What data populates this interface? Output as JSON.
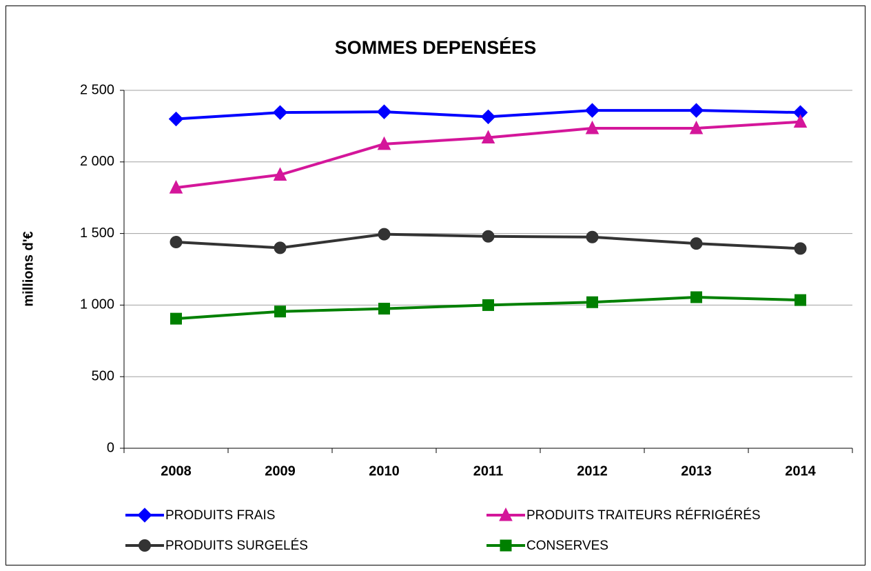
{
  "chart_data": {
    "type": "line",
    "title": "SOMMES DEPENSÉES",
    "y_label": "millions d'€",
    "categories": [
      "2008",
      "2009",
      "2010",
      "2011",
      "2012",
      "2013",
      "2014"
    ],
    "series": [
      {
        "name": "PRODUITS FRAIS",
        "color": "#0000ff",
        "marker": "diamond",
        "values": [
          2300,
          2345,
          2350,
          2315,
          2360,
          2360,
          2345
        ]
      },
      {
        "name": "PRODUITS TRAITEURS RÉFRIGÉRÉS",
        "color": "#d4169a",
        "marker": "triangle",
        "values": [
          1820,
          1910,
          2125,
          2170,
          2235,
          2235,
          2280
        ]
      },
      {
        "name": "PRODUITS SURGELÉS",
        "color": "#333333",
        "marker": "circle",
        "values": [
          1440,
          1400,
          1495,
          1480,
          1475,
          1430,
          1395
        ]
      },
      {
        "name": "CONSERVES",
        "color": "#008000",
        "marker": "square",
        "values": [
          905,
          955,
          975,
          1000,
          1020,
          1055,
          1035
        ]
      }
    ],
    "ylim": [
      0,
      2500
    ],
    "yticks": [
      0,
      500,
      {
        "value": 1000,
        "label": "1 000"
      },
      {
        "value": 1500,
        "label": "1 500"
      },
      {
        "value": 2000,
        "label": "2 000"
      },
      {
        "value": 2500,
        "label": "2 500"
      }
    ],
    "grid": true,
    "legend": "bottom"
  }
}
